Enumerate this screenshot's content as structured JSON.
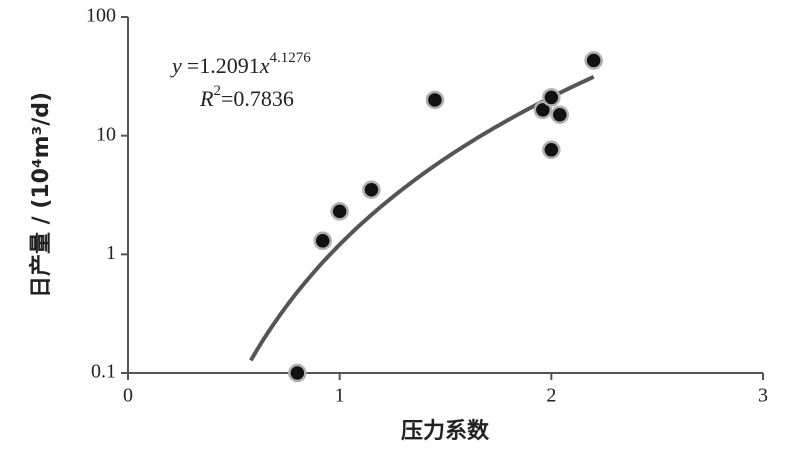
{
  "chart_data": {
    "type": "scatter",
    "xlabel": "压力系数",
    "ylabel": "日产量 / (10⁴m³/d)",
    "x": [
      0.8,
      0.92,
      1.0,
      1.15,
      1.45,
      1.96,
      2.0,
      2.0,
      2.04,
      2.2
    ],
    "values": [
      0.1,
      1.3,
      2.3,
      3.5,
      20,
      16.5,
      21,
      7.6,
      15,
      43
    ],
    "color": "#111111",
    "edge_color": "#b0b0b0",
    "xlim": [
      0,
      3
    ],
    "xticks": [
      0,
      1,
      2,
      3
    ],
    "ylim": [
      0.1,
      100
    ],
    "yticks": [
      0.1,
      1,
      10,
      100
    ],
    "ylog": true,
    "fit": {
      "lhs": "y",
      "eq": "=",
      "coefficient": 1.2091,
      "var": "x",
      "exponent": 4.1276,
      "r_label": "R",
      "r_power": "2",
      "r_eq": "=",
      "r_squared": 0.7836,
      "xlim": [
        0.58,
        2.2
      ],
      "color": "#555555"
    }
  }
}
